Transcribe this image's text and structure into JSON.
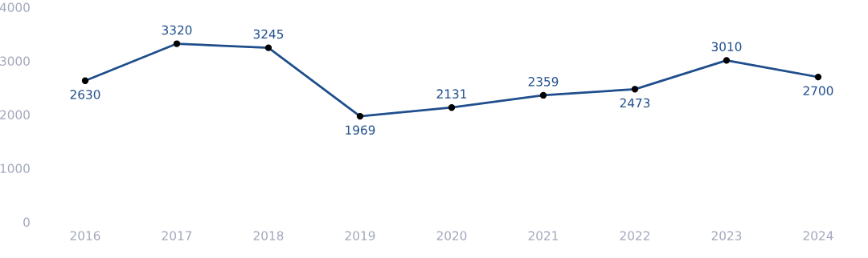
{
  "chart_data": {
    "type": "line",
    "categories": [
      "2016",
      "2017",
      "2018",
      "2019",
      "2020",
      "2021",
      "2022",
      "2023",
      "2024"
    ],
    "series": [
      {
        "color": "#1f4e8c",
        "values": [
          2630,
          3320,
          3245,
          1969,
          2131,
          2359,
          2473,
          3010,
          2700
        ]
      }
    ],
    "ylim": [
      0,
      4000
    ],
    "yticks": [
      0,
      1000,
      2000,
      3000,
      4000
    ],
    "marker": "circle",
    "line_style": "solid",
    "data_labels": true,
    "grid": false,
    "legend": false
  }
}
